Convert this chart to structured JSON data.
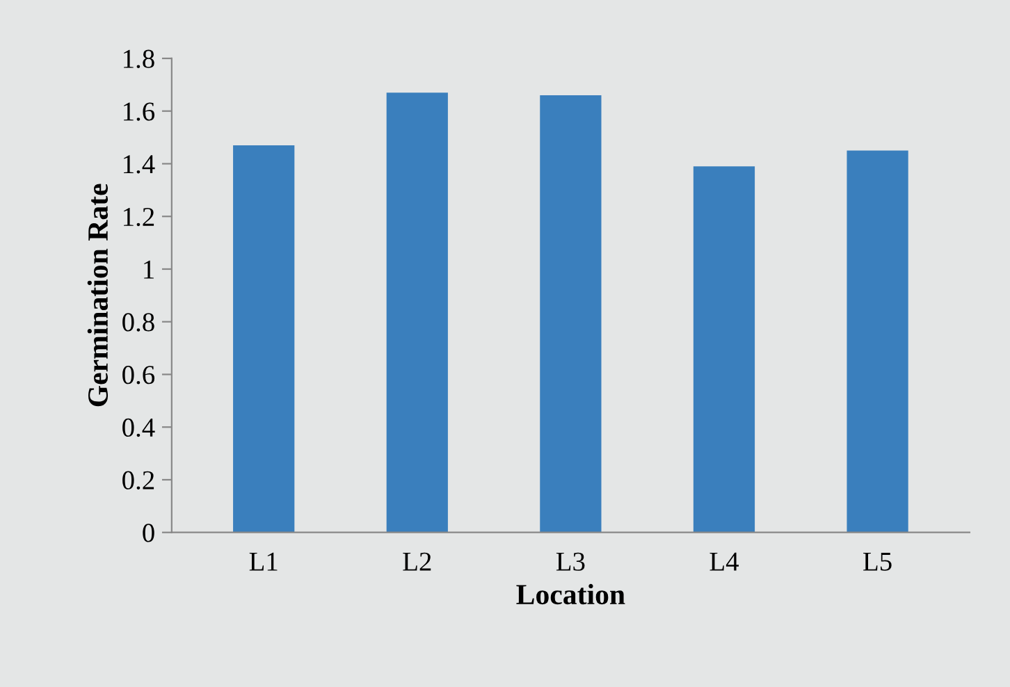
{
  "chart_data": {
    "type": "bar",
    "xlabel": "Location",
    "ylabel": "Germination Rate",
    "categories": [
      "L1",
      "L2",
      "L3",
      "L4",
      "L5"
    ],
    "values": [
      1.47,
      1.67,
      1.66,
      1.39,
      1.45
    ],
    "color": "#3a7fbd",
    "ylim": [
      0,
      1.8
    ],
    "yticks": [
      0,
      0.2,
      0.4,
      0.6,
      0.8,
      1,
      1.2,
      1.4,
      1.6,
      1.8
    ],
    "grid": false
  }
}
